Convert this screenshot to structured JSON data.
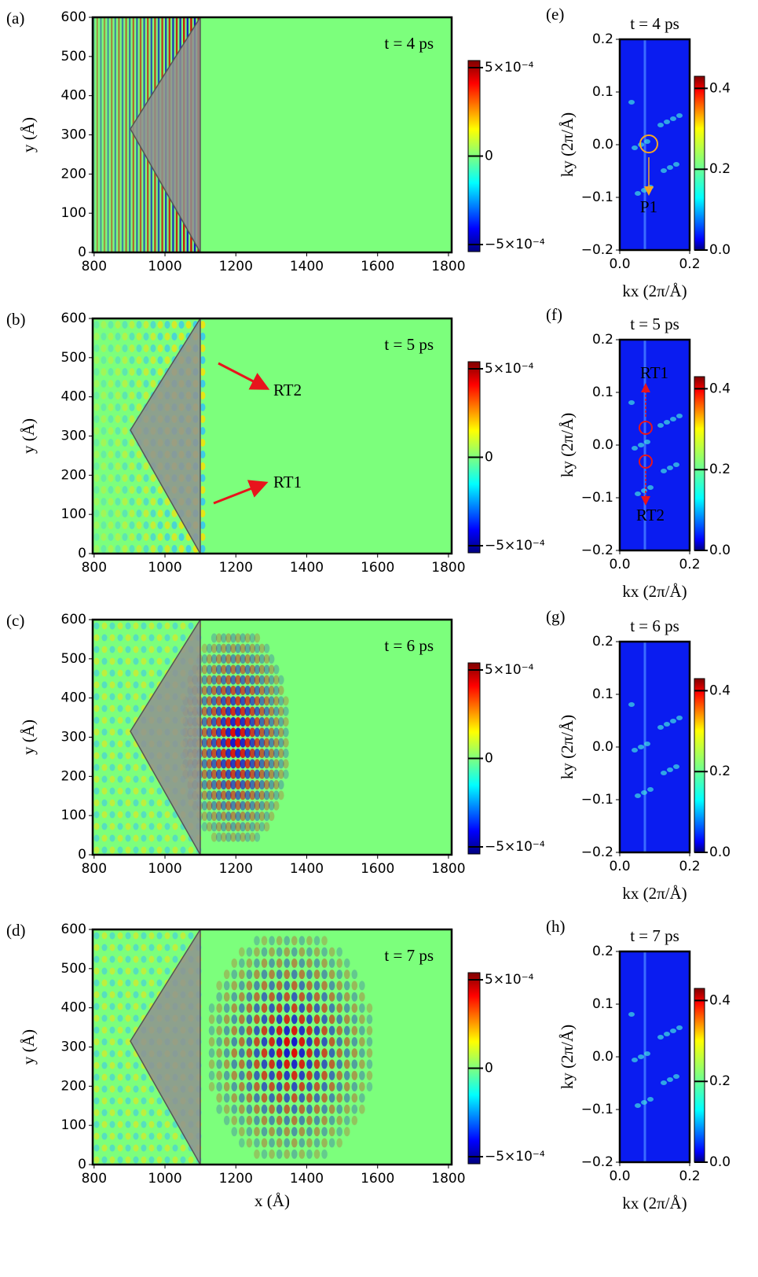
{
  "chart_data": [
    {
      "type": "heatmap",
      "panel_label": "(a)",
      "annotation": "t = 4 ps",
      "ylabel": "y (Å)",
      "xlim": [
        796,
        1809
      ],
      "xticks": [
        800,
        1000,
        1200,
        1400,
        1600,
        1800
      ],
      "ylim": [
        0,
        600
      ],
      "yticks": [
        0,
        100,
        200,
        300,
        400,
        500,
        600
      ],
      "colorbar": {
        "lim": [
          -0.00054,
          0.00054
        ],
        "ticks": [
          {
            "value": 0.0005,
            "label": "5×10⁻⁴"
          },
          0,
          {
            "value": -0.0005,
            "label": "−5×10⁻⁴"
          }
        ]
      }
    },
    {
      "type": "heatmap",
      "panel_label": "(b)",
      "annotation": "t = 5 ps",
      "ylabel": "y (Å)",
      "annotations": [
        "RT2",
        "RT1"
      ],
      "xlim": [
        796,
        1809
      ],
      "xticks": [
        800,
        1000,
        1200,
        1400,
        1600,
        1800
      ],
      "ylim": [
        0,
        600
      ],
      "yticks": [
        0,
        100,
        200,
        300,
        400,
        500,
        600
      ],
      "colorbar": {
        "lim": [
          -0.00054,
          0.00054
        ],
        "ticks": [
          {
            "value": 0.0005,
            "label": "5×10⁻⁴"
          },
          0,
          {
            "value": -0.0005,
            "label": "−5×10⁻⁴"
          }
        ]
      }
    },
    {
      "type": "heatmap",
      "panel_label": "(c)",
      "annotation": "t = 6 ps",
      "ylabel": "y (Å)",
      "xlim": [
        796,
        1809
      ],
      "xticks": [
        800,
        1000,
        1200,
        1400,
        1600,
        1800
      ],
      "ylim": [
        0,
        600
      ],
      "yticks": [
        0,
        100,
        200,
        300,
        400,
        500,
        600
      ],
      "colorbar": {
        "lim": [
          -0.00054,
          0.00054
        ],
        "ticks": [
          {
            "value": 0.0005,
            "label": "5×10⁻⁴"
          },
          0,
          {
            "value": -0.0005,
            "label": "−5×10⁻⁴"
          }
        ]
      }
    },
    {
      "type": "heatmap",
      "panel_label": "(d)",
      "annotation": "t = 7 ps",
      "ylabel": "y (Å)",
      "xlabel": "x (Å)",
      "xlim": [
        796,
        1809
      ],
      "xticks": [
        800,
        1000,
        1200,
        1400,
        1600,
        1800
      ],
      "ylim": [
        0,
        600
      ],
      "yticks": [
        0,
        100,
        200,
        300,
        400,
        500,
        600
      ],
      "colorbar": {
        "lim": [
          -0.00054,
          0.00054
        ],
        "ticks": [
          {
            "value": 0.0005,
            "label": "5×10⁻⁴"
          },
          0,
          {
            "value": -0.0005,
            "label": "−5×10⁻⁴"
          }
        ]
      }
    },
    {
      "type": "heatmap",
      "panel_label": "(e)",
      "title": "t = 4 ps",
      "annotations": [
        "P1"
      ],
      "xlabel": "kx (2π/Å)",
      "ylabel": "ky (2π/Å)",
      "xlim": [
        0,
        0.2
      ],
      "xticks": [
        {
          "value": 0,
          "label": "0.0"
        },
        0.2
      ],
      "ylim": [
        -0.2,
        0.2
      ],
      "yticks": [
        {
          "value": -0.2,
          "label": "−0.2"
        },
        {
          "value": -0.1,
          "label": "−0.1"
        },
        {
          "value": 0,
          "label": "0.0"
        },
        0.1,
        0.2
      ],
      "colorbar": {
        "lim": [
          0,
          0.43
        ],
        "ticks": [
          {
            "value": 0,
            "label": "0.0"
          },
          0.2,
          0.4
        ]
      }
    },
    {
      "type": "heatmap",
      "panel_label": "(f)",
      "title": "t = 5 ps",
      "annotations": [
        "RT1",
        "RT2"
      ],
      "xlabel": "kx (2π/Å)",
      "ylabel": "ky (2π/Å)",
      "xlim": [
        0,
        0.2
      ],
      "xticks": [
        {
          "value": 0,
          "label": "0.0"
        },
        0.2
      ],
      "ylim": [
        -0.2,
        0.2
      ],
      "yticks": [
        {
          "value": -0.2,
          "label": "−0.2"
        },
        {
          "value": -0.1,
          "label": "−0.1"
        },
        {
          "value": 0,
          "label": "0.0"
        },
        0.1,
        0.2
      ],
      "colorbar": {
        "lim": [
          0,
          0.43
        ],
        "ticks": [
          {
            "value": 0,
            "label": "0.0"
          },
          0.2,
          0.4
        ]
      }
    },
    {
      "type": "heatmap",
      "panel_label": "(g)",
      "title": "t = 6 ps",
      "xlabel": "kx (2π/Å)",
      "ylabel": "ky (2π/Å)",
      "xlim": [
        0,
        0.2
      ],
      "xticks": [
        {
          "value": 0,
          "label": "0.0"
        },
        0.2
      ],
      "ylim": [
        -0.2,
        0.2
      ],
      "yticks": [
        {
          "value": -0.2,
          "label": "−0.2"
        },
        {
          "value": -0.1,
          "label": "−0.1"
        },
        {
          "value": 0,
          "label": "0.0"
        },
        0.1,
        0.2
      ],
      "colorbar": {
        "lim": [
          0,
          0.43
        ],
        "ticks": [
          {
            "value": 0,
            "label": "0.0"
          },
          0.2,
          0.4
        ]
      }
    },
    {
      "type": "heatmap",
      "panel_label": "(h)",
      "title": "t = 7 ps",
      "xlabel": "kx (2π/Å)",
      "ylabel": "ky (2π/Å)",
      "xlim": [
        0,
        0.2
      ],
      "xticks": [
        {
          "value": 0,
          "label": "0.0"
        },
        0.2
      ],
      "ylim": [
        -0.2,
        0.2
      ],
      "yticks": [
        {
          "value": -0.2,
          "label": "−0.2"
        },
        {
          "value": -0.1,
          "label": "−0.1"
        },
        {
          "value": 0,
          "label": "0.0"
        },
        0.1,
        0.2
      ],
      "colorbar": {
        "lim": [
          0,
          0.43
        ],
        "ticks": [
          {
            "value": 0,
            "label": "0.0"
          },
          0.2,
          0.4
        ]
      }
    }
  ]
}
